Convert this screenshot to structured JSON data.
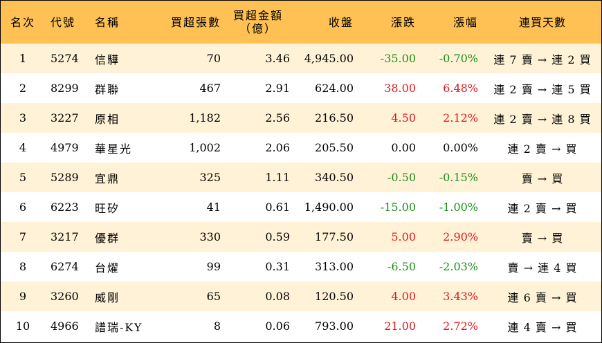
{
  "headers": {
    "rank": "名次",
    "code": "代號",
    "name": "名稱",
    "net_buy_lots": "買超張數",
    "net_buy_amount_line1": "買超金額",
    "net_buy_amount_line2": "（億）",
    "close": "收盤",
    "change": "漲跌",
    "change_pct": "漲幅",
    "streak": "連買天數"
  },
  "rows": [
    {
      "rank": "1",
      "code": "5274",
      "name": "信驊",
      "lots": "70",
      "amount": "3.46",
      "close": "4,945.00",
      "change": "-35.00",
      "pct": "-0.70%",
      "dir": "neg",
      "streak": "連 7 賣 → 連 2 買"
    },
    {
      "rank": "2",
      "code": "8299",
      "name": "群聯",
      "lots": "467",
      "amount": "2.91",
      "close": "624.00",
      "change": "38.00",
      "pct": "6.48%",
      "dir": "pos",
      "streak": "連 2 賣 → 連 5 買"
    },
    {
      "rank": "3",
      "code": "3227",
      "name": "原相",
      "lots": "1,182",
      "amount": "2.56",
      "close": "216.50",
      "change": "4.50",
      "pct": "2.12%",
      "dir": "pos",
      "streak": "連 2 賣 → 連 8 買"
    },
    {
      "rank": "4",
      "code": "4979",
      "name": "華星光",
      "lots": "1,002",
      "amount": "2.06",
      "close": "205.50",
      "change": "0.00",
      "pct": "0.00%",
      "dir": "zero",
      "streak": "連 2 賣 → 買"
    },
    {
      "rank": "5",
      "code": "5289",
      "name": "宜鼎",
      "lots": "325",
      "amount": "1.11",
      "close": "340.50",
      "change": "-0.50",
      "pct": "-0.15%",
      "dir": "neg",
      "streak": "賣 → 買"
    },
    {
      "rank": "6",
      "code": "6223",
      "name": "旺矽",
      "lots": "41",
      "amount": "0.61",
      "close": "1,490.00",
      "change": "-15.00",
      "pct": "-1.00%",
      "dir": "neg",
      "streak": "連 2 賣 → 買"
    },
    {
      "rank": "7",
      "code": "3217",
      "name": "優群",
      "lots": "330",
      "amount": "0.59",
      "close": "177.50",
      "change": "5.00",
      "pct": "2.90%",
      "dir": "pos",
      "streak": "賣 → 買"
    },
    {
      "rank": "8",
      "code": "6274",
      "name": "台燿",
      "lots": "99",
      "amount": "0.31",
      "close": "313.00",
      "change": "-6.50",
      "pct": "-2.03%",
      "dir": "neg",
      "streak": "賣 → 連 4 買"
    },
    {
      "rank": "9",
      "code": "3260",
      "name": "威剛",
      "lots": "65",
      "amount": "0.08",
      "close": "120.50",
      "change": "4.00",
      "pct": "3.43%",
      "dir": "pos",
      "streak": "連 6 賣 → 買"
    },
    {
      "rank": "10",
      "code": "4966",
      "name": "譜瑞-KY",
      "lots": "8",
      "amount": "0.06",
      "close": "793.00",
      "change": "21.00",
      "pct": "2.72%",
      "dir": "pos",
      "streak": "連 4 賣 → 買"
    }
  ]
}
